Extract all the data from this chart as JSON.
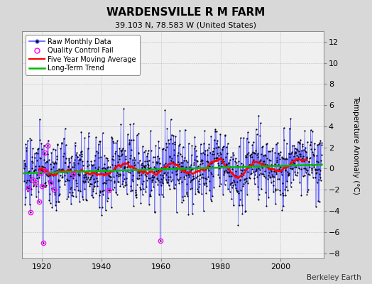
{
  "title": "WARDENSVILLE R M FARM",
  "subtitle": "39.103 N, 78.583 W (United States)",
  "ylabel": "Temperature Anomaly (°C)",
  "attribution": "Berkeley Earth",
  "start_year": 1914,
  "end_year": 2014,
  "ylim": [
    -8.5,
    13.0
  ],
  "yticks": [
    -8,
    -6,
    -4,
    -2,
    0,
    2,
    4,
    6,
    8,
    10,
    12
  ],
  "xticks": [
    1920,
    1940,
    1960,
    1980,
    2000
  ],
  "outer_bg": "#d8d8d8",
  "plot_bg": "#f0f0f0",
  "raw_line_color": "#5555ff",
  "raw_dot_color": "#000000",
  "qc_fail_color": "#ff00ff",
  "moving_avg_color": "#ff0000",
  "trend_color": "#00bb00",
  "seed": 77
}
